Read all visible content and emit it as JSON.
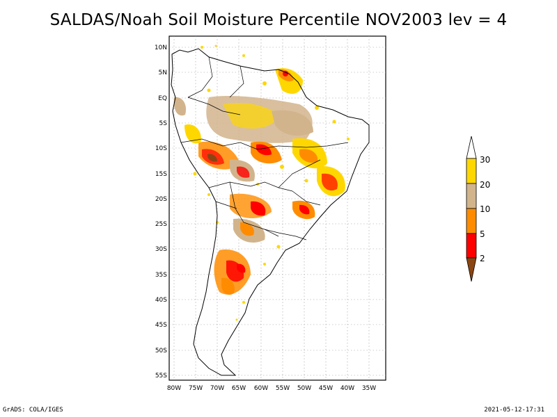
{
  "title": "SALDAS/Noah Soil Moisture Percentile NOV2003 lev = 4",
  "footer": {
    "left": "GrADS: COLA/IGES",
    "right": "2021-05-12-17:31"
  },
  "map": {
    "lat_labels": [
      "10N",
      "5N",
      "EQ",
      "5S",
      "10S",
      "15S",
      "20S",
      "25S",
      "30S",
      "35S",
      "40S",
      "45S",
      "50S",
      "55S"
    ],
    "lon_labels": [
      "80W",
      "75W",
      "70W",
      "65W",
      "60W",
      "55W",
      "50W",
      "45W",
      "40W",
      "35W"
    ],
    "grid": true,
    "region": "South America"
  },
  "colorbar": {
    "labels": [
      "2",
      "5",
      "10",
      "20",
      "30"
    ],
    "colors": [
      "#8b4513",
      "#ff0000",
      "#ff8c00",
      "#d2b48c",
      "#ffd700"
    ],
    "extends": "both"
  }
}
